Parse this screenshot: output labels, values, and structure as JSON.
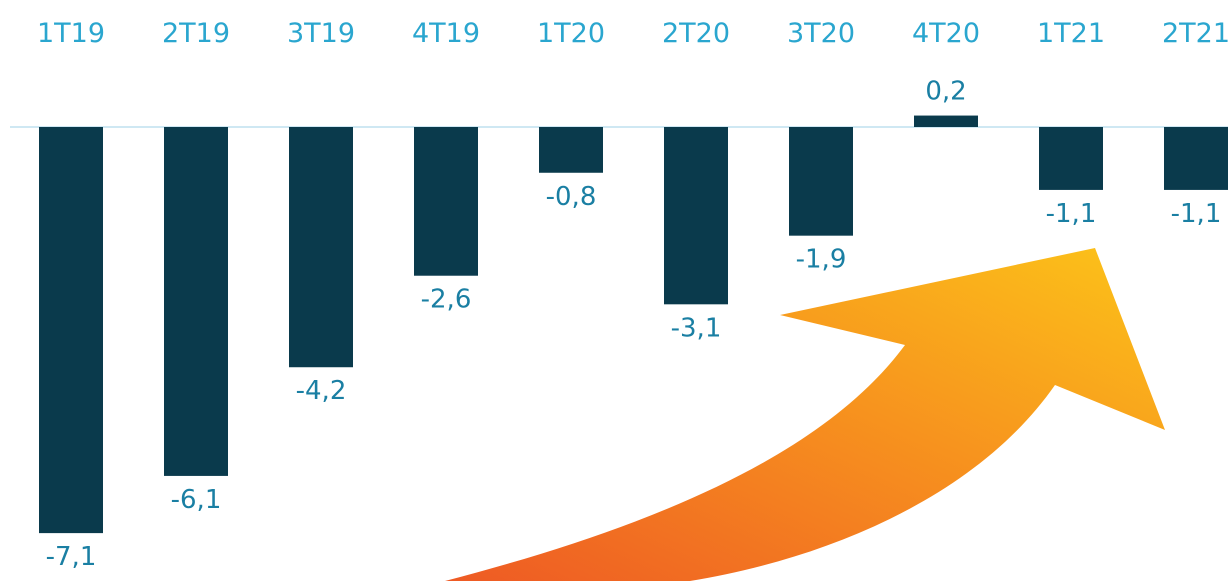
{
  "chart_data": {
    "type": "bar",
    "categories": [
      "1T19",
      "2T19",
      "3T19",
      "4T19",
      "1T20",
      "2T20",
      "3T20",
      "4T20",
      "1T21",
      "2T21"
    ],
    "values": [
      -7.1,
      -6.1,
      -4.2,
      -2.6,
      -0.8,
      -3.1,
      -1.9,
      0.2,
      -1.1,
      -1.1
    ],
    "data_labels": [
      "-7,1",
      "-6,1",
      "-4,2",
      "-2,6",
      "-0,8",
      "-3,1",
      "-1,9",
      "0,2",
      "-1,1",
      "-1,1"
    ],
    "title": "",
    "xlabel": "",
    "ylabel": "",
    "ylim": [
      -7.2,
      0.3
    ],
    "category_axis_position": "top",
    "grid": false,
    "legend": "none",
    "colors": {
      "bar": "#0a3a4c",
      "category_label": "#2aa6cf",
      "value_label": "#1a7fa3",
      "baseline": "#cfe8f3",
      "arrow_start": "#ee5a24",
      "arrow_end": "#fcc419"
    },
    "annotation_icon": "upward-trend-arrow-icon"
  }
}
